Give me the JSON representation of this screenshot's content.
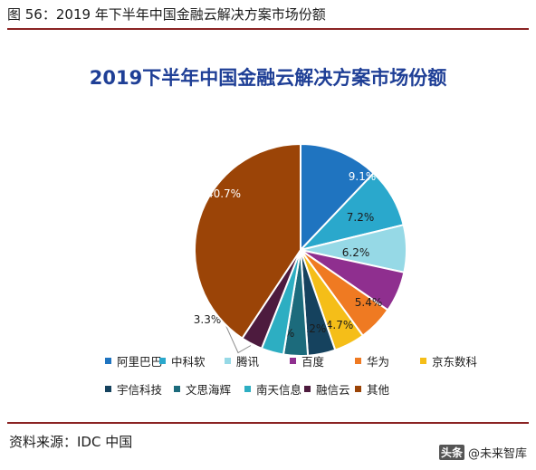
{
  "caption": "图 56：2019 年下半年中国金融云解决方案市场份额",
  "source": "资料来源：IDC 中国",
  "watermark": {
    "logo": "头条",
    "text": "@未来智库"
  },
  "chart_data": {
    "type": "pie",
    "title": "2019下半年中国金融云解决方案市场份额",
    "start_angle_deg": 0,
    "direction": "clockwise",
    "legend_position": "bottom",
    "slices": [
      {
        "name": "阿里巴巴",
        "value": 12.1,
        "label": "12.1%",
        "color": "#1f74c0"
      },
      {
        "name": "中科软",
        "value": 9.1,
        "label": "9.1%",
        "color": "#2aa8cc"
      },
      {
        "name": "腾讯",
        "value": 7.2,
        "label": "7.2%",
        "color": "#96d9e6"
      },
      {
        "name": "百度",
        "value": 6.2,
        "label": "6.2%",
        "color": "#8f2f8f"
      },
      {
        "name": "华为",
        "value": 5.4,
        "label": "5.4%",
        "color": "#ef7a22"
      },
      {
        "name": "京东数科",
        "value": 4.7,
        "label": "4.7%",
        "color": "#f5be18"
      },
      {
        "name": "宇信科技",
        "value": 4.2,
        "label": "4.2%",
        "color": "#15425e"
      },
      {
        "name": "文思海辉",
        "value": 3.7,
        "label": "3.7%",
        "color": "#1c6b7c"
      },
      {
        "name": "南天信息",
        "value": 3.4,
        "label": "3.4%",
        "color": "#2daec2"
      },
      {
        "name": "融信云",
        "value": 3.3,
        "label": "3.3%",
        "color": "#4d1b3e"
      },
      {
        "name": "其他",
        "value": 40.7,
        "label": "40.7%",
        "color": "#9b4407"
      }
    ]
  }
}
